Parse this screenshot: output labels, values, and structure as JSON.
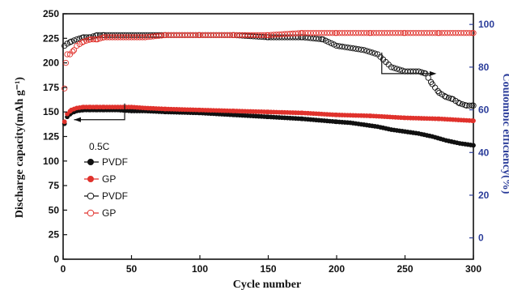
{
  "chart_data": {
    "type": "scatter",
    "xlabel": "Cycle number",
    "ylabel": "Discharge capacity(mAh g⁻¹)",
    "y2label": "Coulombic efficiency(%)",
    "xlim": [
      0,
      300
    ],
    "ylim": [
      0,
      250
    ],
    "y2lim": [
      -10,
      105
    ],
    "x_ticks": [
      0,
      50,
      100,
      150,
      200,
      250,
      300
    ],
    "y_ticks": [
      0,
      25,
      50,
      75,
      100,
      125,
      150,
      175,
      200,
      225,
      250
    ],
    "y2_ticks": [
      0,
      20,
      40,
      60,
      80,
      100
    ],
    "annotation": "0.5C",
    "legend_position": "left-middle",
    "colors": {
      "pvdf": "#111111",
      "gp": "#e0322c",
      "right_axis": "#2b3d9a"
    },
    "series": [
      {
        "name": "PVDF",
        "axis": "left",
        "marker": "filled-circle",
        "color": "#111111",
        "x": [
          1,
          3,
          6,
          10,
          15,
          20,
          25,
          30,
          40,
          50,
          60,
          75,
          100,
          125,
          150,
          175,
          200,
          210,
          220,
          230,
          240,
          250,
          260,
          270,
          280,
          290,
          300
        ],
        "values": [
          138,
          145,
          149,
          151,
          152,
          152,
          152,
          152,
          152,
          151,
          151,
          150,
          149,
          147,
          145,
          143,
          140,
          139,
          137,
          135,
          132,
          130,
          128,
          125,
          121,
          118,
          116
        ]
      },
      {
        "name": "GP",
        "axis": "left",
        "marker": "filled-circle",
        "color": "#e0322c",
        "x": [
          1,
          3,
          6,
          10,
          15,
          20,
          25,
          30,
          40,
          50,
          60,
          75,
          100,
          125,
          150,
          175,
          200,
          225,
          250,
          275,
          300
        ],
        "values": [
          140,
          148,
          152,
          154,
          155,
          155,
          155,
          155,
          155,
          155,
          154,
          153,
          152,
          151,
          150,
          149,
          147,
          146,
          144,
          143,
          141
        ]
      },
      {
        "name": "PVDF",
        "axis": "right",
        "marker": "open-circle",
        "color": "#111111",
        "x": [
          1,
          3,
          6,
          10,
          15,
          20,
          25,
          30,
          40,
          50,
          60,
          75,
          100,
          125,
          150,
          175,
          190,
          200,
          210,
          220,
          230,
          240,
          250,
          260,
          265,
          270,
          275,
          280,
          285,
          290,
          295,
          300
        ],
        "values": [
          90,
          91,
          92,
          93,
          94,
          94,
          95,
          95,
          95,
          95,
          95,
          95,
          95,
          95,
          94,
          94,
          93,
          90,
          89,
          88,
          86,
          80,
          78,
          78,
          77,
          72,
          68,
          66,
          65,
          63,
          62,
          62
        ]
      },
      {
        "name": "GP",
        "axis": "right",
        "marker": "open-circle",
        "color": "#e0322c",
        "x": [
          1,
          2,
          3,
          5,
          8,
          10,
          15,
          20,
          25,
          30,
          40,
          50,
          60,
          75,
          100,
          125,
          150,
          175,
          200,
          225,
          250,
          275,
          300
        ],
        "values": [
          70,
          82,
          86,
          86,
          88,
          90,
          92,
          93,
          93,
          94,
          94,
          94,
          94,
          95,
          95,
          95,
          95,
          96,
          96,
          96,
          96,
          96,
          96
        ]
      }
    ]
  }
}
